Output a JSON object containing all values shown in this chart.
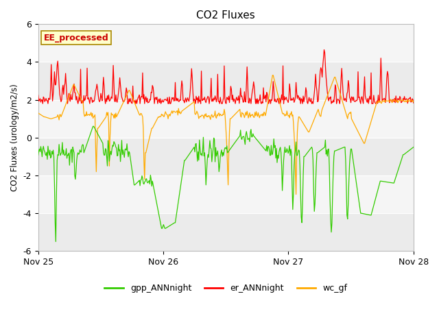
{
  "title": "CO2 Fluxes",
  "ylabel": "CO2 Fluxes (urology/m2/s)",
  "ylim": [
    -6,
    6
  ],
  "yticks": [
    -6,
    -4,
    -2,
    0,
    2,
    4,
    6
  ],
  "xtick_labels": [
    "Nov 25",
    "Nov 26",
    "Nov 27",
    "Nov 28"
  ],
  "annotation_text": "EE_processed",
  "annotation_color": "#cc0000",
  "annotation_bg": "#ffffcc",
  "line_colors": {
    "gpp": "#33cc00",
    "er": "#ff0000",
    "wc": "#ffaa00"
  },
  "legend_labels": [
    "gpp_ANNnight",
    "er_ANNnight",
    "wc_gf"
  ],
  "band_colors": [
    "#ebebeb",
    "#f5f5f5"
  ],
  "figsize": [
    6.4,
    4.8
  ],
  "dpi": 100
}
